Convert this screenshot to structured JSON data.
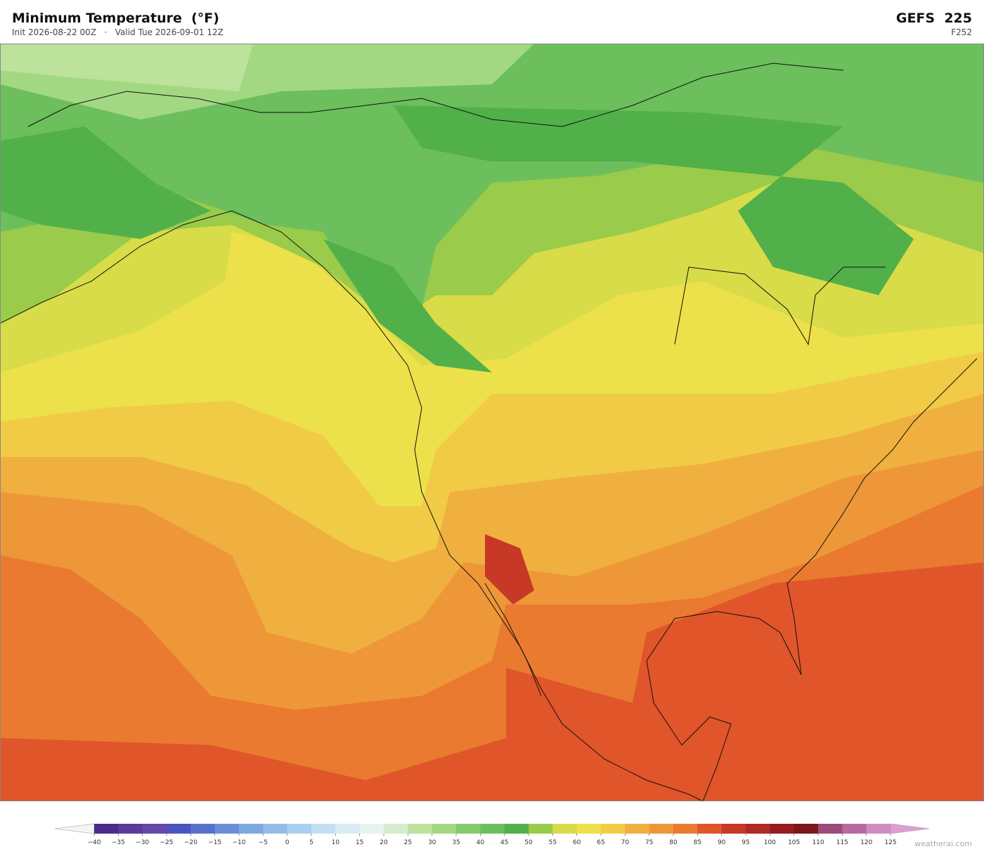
{
  "header": {
    "title": "Minimum Temperature  (°F)",
    "subtitle": "Init 2026-08-22 00Z   ·   Valid Tue 2026-09-01 12Z",
    "model": "GEFS  225",
    "forecast_hour": "F252"
  },
  "colorbar": {
    "ticks": [
      {
        "value": -40,
        "label": "−40"
      },
      {
        "value": -35,
        "label": "−35"
      },
      {
        "value": -30,
        "label": "−30"
      },
      {
        "value": -25,
        "label": "−25"
      },
      {
        "value": -20,
        "label": "−20"
      },
      {
        "value": -15,
        "label": "−15"
      },
      {
        "value": -10,
        "label": "−10"
      },
      {
        "value": -5,
        "label": "−5"
      },
      0,
      5,
      10,
      15,
      20,
      25,
      30,
      35,
      40,
      45,
      50,
      55,
      60,
      65,
      70,
      75,
      80,
      85,
      90,
      95,
      100,
      105,
      110,
      115,
      120,
      125
    ],
    "colors": [
      "#4a2a8c",
      "#5b3a9c",
      "#6648a8",
      "#4b55c0",
      "#5872cc",
      "#6b8fd6",
      "#7faadf",
      "#93bde6",
      "#a9d0ee",
      "#c2e0f2",
      "#d9ecf4",
      "#e6f3ee",
      "#d5ecce",
      "#bde29c",
      "#a3d882",
      "#86cc6c",
      "#6cbf5c",
      "#52b04a",
      "#9acb4a",
      "#d7dc48",
      "#ece14a",
      "#f2cb46",
      "#f0b040",
      "#ee9738",
      "#e97a30",
      "#e0552a",
      "#c83826",
      "#b02a24",
      "#951c1f",
      "#7c1619",
      "#9c4a7a",
      "#b86aa0",
      "#cf8cbf"
    ],
    "under_color": "#f4f4f4",
    "over_color": "#dca0d0"
  },
  "watermark": "weatherai.com"
}
